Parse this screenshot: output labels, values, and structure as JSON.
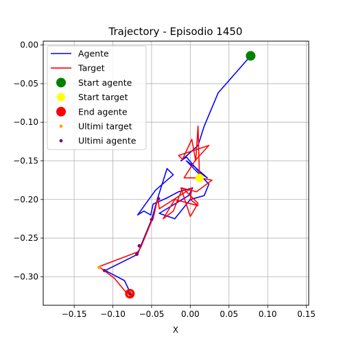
{
  "chart_data": {
    "type": "line",
    "title": "Trajectory - Episodio 1450",
    "xlabel": "X",
    "ylabel": "Y",
    "xlim": [
      -0.19,
      0.153
    ],
    "ylim": [
      -0.337,
      0.005
    ],
    "grid": true,
    "legend_position": "top-left",
    "x_ticks": [
      -0.15,
      -0.1,
      -0.05,
      0.0,
      0.05,
      0.1,
      0.15
    ],
    "x_tick_labels": [
      "−0.15",
      "−0.10",
      "−0.05",
      "0.00",
      "0.05",
      "0.10",
      "0.15"
    ],
    "y_ticks": [
      0.0,
      -0.05,
      -0.1,
      -0.15,
      -0.2,
      -0.25,
      -0.3
    ],
    "y_tick_labels": [
      "0.00",
      "−0.05",
      "−0.10",
      "−0.15",
      "−0.20",
      "−0.25",
      "−0.30"
    ],
    "series": [
      {
        "name": "Agente",
        "kind": "line",
        "color": "#0000ff",
        "x": [
          0.078,
          0.036,
          0.018,
          0.01,
          -0.012,
          -0.005,
          0.012,
          0.022,
          0.006,
          -0.005,
          0.024,
          0.018,
          0.0,
          -0.02,
          -0.04,
          -0.002,
          0.003,
          -0.015,
          -0.03,
          -0.048,
          -0.051,
          -0.06,
          -0.068,
          -0.045,
          -0.022,
          -0.03,
          -0.042,
          -0.05,
          -0.064,
          -0.068,
          -0.11,
          -0.085,
          -0.077
        ],
        "y": [
          -0.014,
          -0.062,
          -0.105,
          -0.13,
          -0.15,
          -0.145,
          -0.165,
          -0.172,
          -0.158,
          -0.15,
          -0.18,
          -0.195,
          -0.2,
          -0.225,
          -0.218,
          -0.195,
          -0.185,
          -0.19,
          -0.198,
          -0.206,
          -0.22,
          -0.215,
          -0.22,
          -0.188,
          -0.168,
          -0.16,
          -0.198,
          -0.226,
          -0.26,
          -0.271,
          -0.292,
          -0.305,
          -0.322
        ]
      },
      {
        "name": "Target",
        "kind": "line",
        "color": "#ff0000",
        "x": [
          0.012,
          0.01,
          0.007,
          0.002,
          -0.01,
          -0.015,
          0.024,
          0.006,
          -0.008,
          0.012,
          0.028,
          0.008,
          -0.012,
          0.0,
          0.01,
          -0.01,
          -0.022,
          -0.035,
          -0.02,
          0.01,
          0.0,
          0.002,
          -0.04,
          -0.042,
          -0.048,
          -0.05,
          -0.064,
          -0.068,
          -0.118,
          -0.098,
          -0.08
        ],
        "y": [
          -0.175,
          -0.105,
          -0.15,
          -0.122,
          -0.148,
          -0.143,
          -0.13,
          -0.15,
          -0.172,
          -0.172,
          -0.175,
          -0.19,
          -0.185,
          -0.222,
          -0.205,
          -0.185,
          -0.215,
          -0.225,
          -0.2,
          -0.208,
          -0.2,
          -0.185,
          -0.212,
          -0.198,
          -0.225,
          -0.228,
          -0.262,
          -0.268,
          -0.287,
          -0.302,
          -0.324
        ]
      }
    ],
    "markers": [
      {
        "name": "Start agente",
        "color": "#008000",
        "size": 7,
        "x": [
          0.078
        ],
        "y": [
          -0.014
        ]
      },
      {
        "name": "Start target",
        "color": "#ffff00",
        "size": 6,
        "x": [
          0.012
        ],
        "y": [
          -0.172
        ]
      },
      {
        "name": "End agente",
        "color": "#ff0000",
        "size": 7,
        "x": [
          -0.078
        ],
        "y": [
          -0.322
        ]
      },
      {
        "name": "Ultimi target",
        "color": "#ffa500",
        "size": 2.4,
        "x": [
          -0.077,
          -0.079,
          -0.118
        ],
        "y": [
          -0.321,
          -0.323,
          -0.288
        ]
      },
      {
        "name": "Ultimi agente",
        "color": "#800080",
        "size": 2.4,
        "x": [
          -0.041,
          -0.05,
          -0.066,
          -0.069,
          -0.111,
          -0.078
        ],
        "y": [
          -0.199,
          -0.226,
          -0.26,
          -0.271,
          -0.292,
          -0.322
        ]
      }
    ]
  }
}
